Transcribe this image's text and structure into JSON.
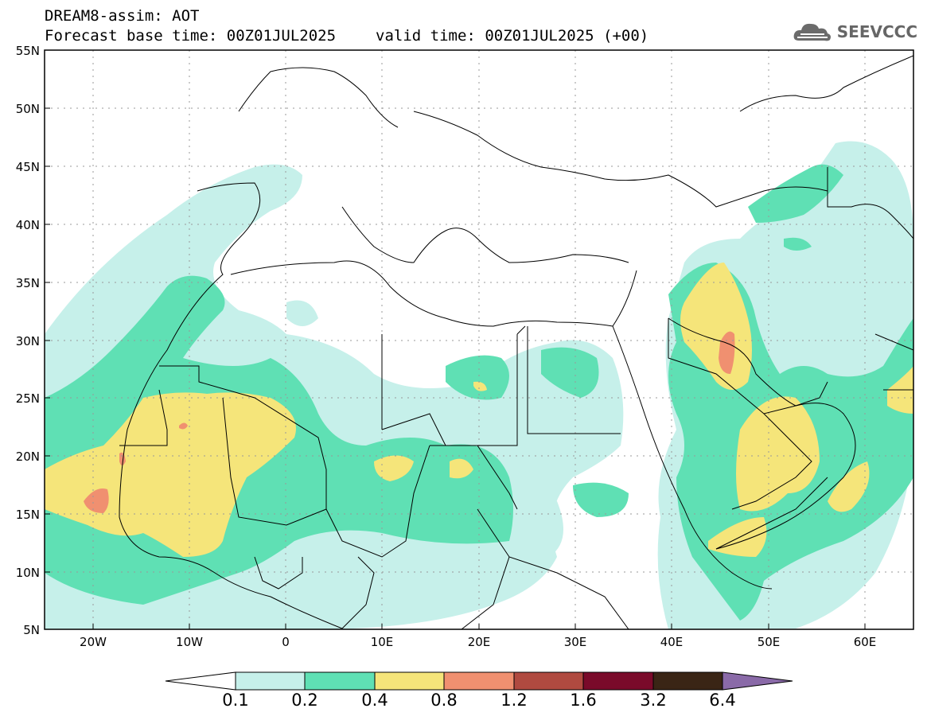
{
  "title": {
    "line1": "DREAM8-assim: AOT",
    "base_time": "Forecast base time: 00Z01JUL2025",
    "valid_time": "valid time: 00Z01JUL2025 (+00)"
  },
  "logo_text": "SEEVCCC",
  "lat_ticks": [
    "55N",
    "50N",
    "45N",
    "40N",
    "35N",
    "30N",
    "25N",
    "20N",
    "15N",
    "10N",
    "5N"
  ],
  "lon_ticks": [
    "20W",
    "10W",
    "0",
    "10E",
    "20E",
    "30E",
    "40E",
    "50E",
    "60E"
  ],
  "colorbar": {
    "labels": [
      "0.1",
      "0.2",
      "0.4",
      "0.8",
      "1.2",
      "1.6",
      "3.2",
      "6.4"
    ],
    "colors": [
      "#c6f0ea",
      "#5fe0b4",
      "#f5e57a",
      "#f09070",
      "#b04a40",
      "#7a0a2a",
      "#3a2515",
      "#8a6aa8"
    ]
  },
  "chart_data": {
    "type": "heatmap",
    "variable": "AOT",
    "title": "DREAM8-assim: AOT",
    "lon_range": [
      -25,
      65
    ],
    "lat_range": [
      5,
      55
    ],
    "levels": [
      0.1,
      0.2,
      0.4,
      0.8,
      1.2,
      1.6,
      3.2,
      6.4
    ]
  }
}
